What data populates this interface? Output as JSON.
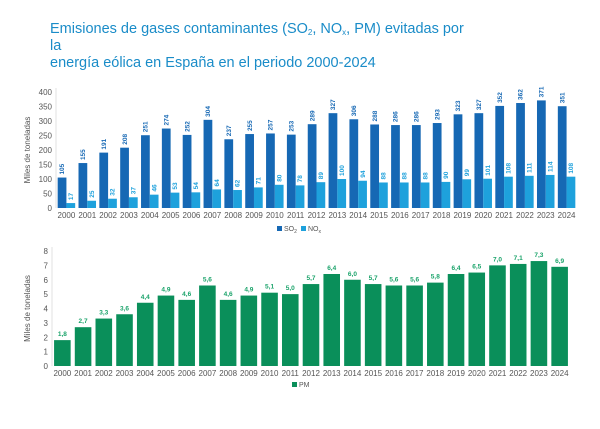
{
  "title": {
    "line1_pre": "Emisiones de gases contaminantes (SO",
    "line1_sub1": "2",
    "line1_mid": ", NO",
    "line1_sub2": "x",
    "line1_post": ", PM) evitadas por la",
    "line2": "energía eólica en España en el periodo 2000-2024"
  },
  "colors": {
    "title": "#1a8cc8",
    "so2": "#1668b4",
    "nox": "#1ea1dc",
    "pm": "#0a8f5a",
    "pm_label": "#1aa36a"
  },
  "chart_data": [
    {
      "type": "bar",
      "title": "",
      "xlabel": "",
      "ylabel": "Miles de toneladas",
      "ylim": [
        0,
        400
      ],
      "yticks": [
        0,
        50,
        100,
        150,
        200,
        250,
        300,
        350,
        400
      ],
      "grid": false,
      "legend": "bottom-center",
      "categories": [
        "2000",
        "2001",
        "2002",
        "2003",
        "2004",
        "2005",
        "2006",
        "2007",
        "2008",
        "2009",
        "2010",
        "2011",
        "2012",
        "2013",
        "2014",
        "2015",
        "2016",
        "2017",
        "2018",
        "2019",
        "2020",
        "2021",
        "2022",
        "2023",
        "2024"
      ],
      "series": [
        {
          "name": "SO2",
          "legend_main": "SO",
          "legend_sub": "2",
          "values": [
            105,
            155,
            191,
            208,
            251,
            274,
            252,
            304,
            237,
            255,
            257,
            253,
            289,
            327,
            306,
            288,
            286,
            286,
            293,
            323,
            327,
            352,
            362,
            371,
            351
          ]
        },
        {
          "name": "NOx",
          "legend_main": "NO",
          "legend_sub": "x",
          "values": [
            17,
            25,
            32,
            37,
            46,
            53,
            54,
            64,
            62,
            71,
            80,
            78,
            89,
            100,
            94,
            88,
            88,
            88,
            90,
            99,
            101,
            108,
            111,
            114,
            108
          ]
        }
      ]
    },
    {
      "type": "bar",
      "title": "",
      "xlabel": "",
      "ylabel": "Miles de toneladas",
      "ylim": [
        0,
        8
      ],
      "yticks": [
        0,
        1,
        2,
        3,
        4,
        5,
        6,
        7,
        8
      ],
      "grid": false,
      "legend": "bottom-center",
      "categories": [
        "2000",
        "2001",
        "2002",
        "2003",
        "2004",
        "2005",
        "2006",
        "2007",
        "2008",
        "2009",
        "2010",
        "2011",
        "2012",
        "2013",
        "2014",
        "2015",
        "2016",
        "2017",
        "2018",
        "2019",
        "2020",
        "2021",
        "2022",
        "2023",
        "2024"
      ],
      "series": [
        {
          "name": "PM",
          "legend_main": "PM",
          "legend_sub": "",
          "labels": [
            "1,8",
            "2,7",
            "3,3",
            "3,6",
            "4,4",
            "4,9",
            "4,6",
            "5,6",
            "4,6",
            "4,9",
            "5,1",
            "5,0",
            "5,7",
            "6,4",
            "6,0",
            "5,7",
            "5,6",
            "5,6",
            "5,8",
            "6,4",
            "6,5",
            "7,0",
            "7,1",
            "7,3",
            "6,9"
          ],
          "values": [
            1.8,
            2.7,
            3.3,
            3.6,
            4.4,
            4.9,
            4.6,
            5.6,
            4.6,
            4.9,
            5.1,
            5.0,
            5.7,
            6.4,
            6.0,
            5.7,
            5.6,
            5.6,
            5.8,
            6.4,
            6.5,
            7.0,
            7.1,
            7.3,
            6.9
          ]
        }
      ]
    }
  ]
}
